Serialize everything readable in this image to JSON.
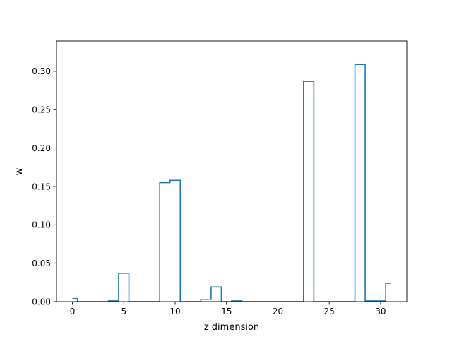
{
  "chart_data": {
    "type": "line",
    "drawstyle": "steps-mid",
    "xlabel": "z dimension",
    "ylabel": "w",
    "xlim": [
      -1.55,
      32.55
    ],
    "ylim": [
      0,
      0.3395
    ],
    "xticks": [
      0,
      5,
      10,
      15,
      20,
      25,
      30
    ],
    "xtick_labels": [
      "0",
      "5",
      "10",
      "15",
      "20",
      "25",
      "30"
    ],
    "yticks": [
      0,
      0.05,
      0.1,
      0.15,
      0.2,
      0.25,
      0.3
    ],
    "ytick_labels": [
      "0.00",
      "0.05",
      "0.10",
      "0.15",
      "0.20",
      "0.25",
      "0.30"
    ],
    "grid": false,
    "series": [
      {
        "color": "#1f77b4",
        "x": [
          0,
          1,
          2,
          3,
          4,
          5,
          6,
          7,
          8,
          9,
          10,
          11,
          12,
          13,
          14,
          15,
          16,
          17,
          18,
          19,
          20,
          21,
          22,
          23,
          24,
          25,
          26,
          27,
          28,
          29,
          30,
          31
        ],
        "y": [
          0.004,
          0,
          0,
          0,
          0.001,
          0.037,
          0,
          0,
          0,
          0.155,
          0.158,
          0,
          0,
          0.003,
          0.019,
          0,
          0.001,
          0,
          0,
          0,
          0,
          0,
          0,
          0.287,
          0,
          0,
          0,
          0,
          0.309,
          0.001,
          0.001,
          0.024
        ]
      }
    ]
  }
}
